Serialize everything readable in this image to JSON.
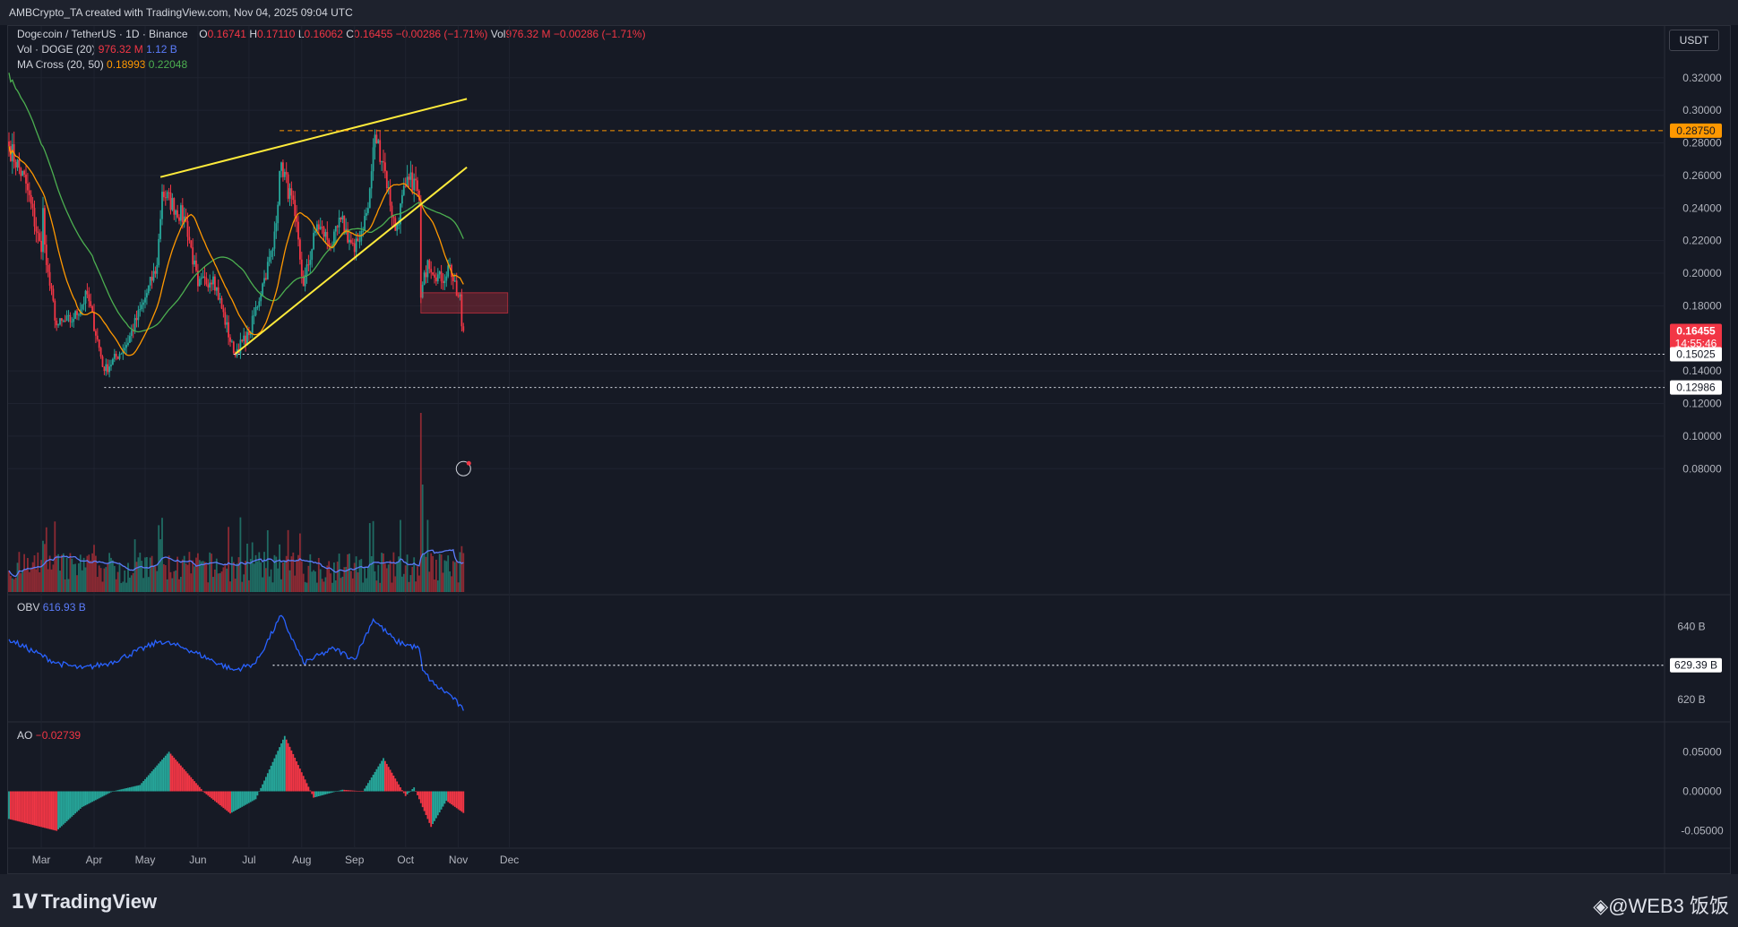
{
  "header": {
    "credit": "AMBCrypto_TA created with TradingView.com, Nov 04, 2025 09:04 UTC"
  },
  "legend": {
    "symbol": "Dogecoin / TetherUS · 1D · Binance",
    "o_label": "O",
    "o_val": "0.16741",
    "h_label": "H",
    "h_val": "0.17110",
    "l_label": "L",
    "l_val": "0.16062",
    "c_label": "C",
    "c_val": "0.16455",
    "chg": "−0.00286 (−1.71%)",
    "vol_label": "Vol",
    "vol_val": "976.32 M",
    "vol_chg": "−0.00286 (−1.71%)",
    "vol_ind": "Vol · DOGE (20)",
    "vol_ind_v1": "976.32 M",
    "vol_ind_v2": "1.12 B",
    "ma": "MA Cross (20, 50)",
    "ma_v1": "0.18993",
    "ma_v2": "0.22048",
    "obv": "OBV",
    "obv_val": "616.93 B",
    "ao": "AO",
    "ao_val": "−0.02739"
  },
  "currency_button": "USDT",
  "footer": {
    "brand": "TradingView",
    "watermark": "◈@WEB3 饭饭"
  },
  "colors": {
    "up": "#26a69a",
    "down": "#f23645",
    "ma_fast": "#ff9800",
    "ma_slow": "#4caf50",
    "obv": "#2962ff",
    "trend": "#ffeb3b",
    "bg": "#161a25"
  },
  "chart_data": [
    {
      "type": "candlestick",
      "title": "Dogecoin / TetherUS · 1D · Binance",
      "x_tick_labels": [
        "Mar",
        "Apr",
        "May",
        "Jun",
        "Jul",
        "Aug",
        "Sep",
        "Oct",
        "Nov",
        "Dec"
      ],
      "y_tick_labels": [
        "0.32000",
        "0.30000",
        "0.28000",
        "0.26000",
        "0.24000",
        "0.22000",
        "0.20000",
        "0.18000",
        "0.14000",
        "0.12000",
        "0.10000",
        "0.08000"
      ],
      "ylim": [
        0.07,
        0.345
      ],
      "price_markers": [
        {
          "label": "0.28750",
          "value": 0.2875,
          "style": "orange"
        },
        {
          "label": "0.16455",
          "sub": "14:55:46",
          "value": 0.16455,
          "style": "red"
        },
        {
          "label": "0.15025",
          "value": 0.15025,
          "style": "white"
        },
        {
          "label": "0.12986",
          "value": 0.12986,
          "style": "white"
        }
      ],
      "trendlines": [
        {
          "name": "upper-resistance",
          "from": [
            "2025-05-10",
            0.259
          ],
          "to": [
            "2025-11-06",
            0.307
          ]
        },
        {
          "name": "rising-support",
          "from": [
            "2025-06-23",
            0.1505
          ],
          "to": [
            "2025-11-06",
            0.265
          ]
        }
      ],
      "levels": [
        {
          "name": "dashed-0.2875",
          "value": 0.2875,
          "from": "2025-07-19"
        },
        {
          "name": "dotted-0.15025",
          "value": 0.15025,
          "from": "2025-06-22"
        },
        {
          "name": "dotted-0.12986",
          "value": 0.12986,
          "from": "2025-04-07"
        }
      ],
      "zone": {
        "from": "2025-10-10",
        "to": "2025-11-30",
        "low": 0.1755,
        "high": 0.188
      },
      "ohlc_anchors": [
        {
          "date": "2025-02-10",
          "close": 0.278
        },
        {
          "date": "2025-02-20",
          "close": 0.255
        },
        {
          "date": "2025-03-01",
          "close": 0.213
        },
        {
          "date": "2025-03-02",
          "close": 0.24
        },
        {
          "date": "2025-03-04",
          "close": 0.205
        },
        {
          "date": "2025-03-10",
          "close": 0.168
        },
        {
          "date": "2025-03-20",
          "close": 0.172
        },
        {
          "date": "2025-03-28",
          "close": 0.187
        },
        {
          "date": "2025-04-07",
          "close": 0.14
        },
        {
          "date": "2025-04-20",
          "close": 0.156
        },
        {
          "date": "2025-04-30",
          "close": 0.182
        },
        {
          "date": "2025-05-08",
          "close": 0.205
        },
        {
          "date": "2025-05-11",
          "close": 0.25
        },
        {
          "date": "2025-05-25",
          "close": 0.232
        },
        {
          "date": "2025-06-01",
          "close": 0.192
        },
        {
          "date": "2025-06-10",
          "close": 0.198
        },
        {
          "date": "2025-06-22",
          "close": 0.151
        },
        {
          "date": "2025-07-01",
          "close": 0.162
        },
        {
          "date": "2025-07-10",
          "close": 0.197
        },
        {
          "date": "2025-07-15",
          "close": 0.215
        },
        {
          "date": "2025-07-20",
          "close": 0.268
        },
        {
          "date": "2025-07-28",
          "close": 0.235
        },
        {
          "date": "2025-08-02",
          "close": 0.192
        },
        {
          "date": "2025-08-10",
          "close": 0.23
        },
        {
          "date": "2025-08-19",
          "close": 0.217
        },
        {
          "date": "2025-08-24",
          "close": 0.233
        },
        {
          "date": "2025-09-01",
          "close": 0.213
        },
        {
          "date": "2025-09-09",
          "close": 0.24
        },
        {
          "date": "2025-09-13",
          "close": 0.285
        },
        {
          "date": "2025-09-18",
          "close": 0.268
        },
        {
          "date": "2025-09-25",
          "close": 0.226
        },
        {
          "date": "2025-10-01",
          "close": 0.253
        },
        {
          "date": "2025-10-06",
          "close": 0.258
        },
        {
          "date": "2025-10-09",
          "close": 0.245
        },
        {
          "date": "2025-10-10",
          "close": 0.185
        },
        {
          "date": "2025-10-14",
          "close": 0.208
        },
        {
          "date": "2025-10-22",
          "close": 0.195
        },
        {
          "date": "2025-10-27",
          "close": 0.205
        },
        {
          "date": "2025-10-31",
          "close": 0.186
        },
        {
          "date": "2025-11-02",
          "close": 0.187
        },
        {
          "date": "2025-11-03",
          "close": 0.16741
        },
        {
          "date": "2025-11-04",
          "close": 0.16455
        }
      ],
      "ma_cross": {
        "fast_period": 20,
        "slow_period": 50,
        "fast_last": 0.18993,
        "slow_last": 0.22048
      },
      "volume_ma_last": "1.12 B"
    },
    {
      "type": "line",
      "title": "OBV",
      "y_tick_labels": [
        "640 B",
        "620 B"
      ],
      "marker": {
        "label": "629.39 B",
        "value": 629.39
      },
      "series": [
        {
          "name": "OBV",
          "last": 616.93,
          "anchors": [
            {
              "date": "2025-02-10",
              "v": 636.5
            },
            {
              "date": "2025-03-10",
              "v": 630
            },
            {
              "date": "2025-03-25",
              "v": 628.5
            },
            {
              "date": "2025-04-10",
              "v": 630
            },
            {
              "date": "2025-05-10",
              "v": 636
            },
            {
              "date": "2025-05-25",
              "v": 634
            },
            {
              "date": "2025-06-22",
              "v": 628
            },
            {
              "date": "2025-07-05",
              "v": 630
            },
            {
              "date": "2025-07-20",
              "v": 643
            },
            {
              "date": "2025-08-02",
              "v": 630
            },
            {
              "date": "2025-08-20",
              "v": 634
            },
            {
              "date": "2025-09-01",
              "v": 631
            },
            {
              "date": "2025-09-12",
              "v": 642
            },
            {
              "date": "2025-09-25",
              "v": 636
            },
            {
              "date": "2025-10-09",
              "v": 634
            },
            {
              "date": "2025-10-11",
              "v": 628
            },
            {
              "date": "2025-10-18",
              "v": 624
            },
            {
              "date": "2025-10-28",
              "v": 621
            },
            {
              "date": "2025-11-04",
              "v": 616.93
            }
          ]
        }
      ]
    },
    {
      "type": "bar",
      "title": "AO",
      "y_tick_labels": [
        "0.05000",
        "0.00000",
        "-0.05000"
      ],
      "last": -0.02739,
      "anchors": [
        {
          "date": "2025-02-10",
          "v": -0.035
        },
        {
          "date": "2025-03-10",
          "v": -0.05
        },
        {
          "date": "2025-03-25",
          "v": -0.02
        },
        {
          "date": "2025-04-12",
          "v": 0.0
        },
        {
          "date": "2025-04-28",
          "v": 0.008
        },
        {
          "date": "2025-05-15",
          "v": 0.05
        },
        {
          "date": "2025-06-05",
          "v": -0.002
        },
        {
          "date": "2025-06-20",
          "v": -0.028
        },
        {
          "date": "2025-07-05",
          "v": -0.01
        },
        {
          "date": "2025-07-22",
          "v": 0.07
        },
        {
          "date": "2025-08-08",
          "v": -0.008
        },
        {
          "date": "2025-08-25",
          "v": 0.002
        },
        {
          "date": "2025-09-06",
          "v": 0.0
        },
        {
          "date": "2025-09-18",
          "v": 0.042
        },
        {
          "date": "2025-10-01",
          "v": -0.006
        },
        {
          "date": "2025-10-06",
          "v": 0.005
        },
        {
          "date": "2025-10-16",
          "v": -0.045
        },
        {
          "date": "2025-10-25",
          "v": -0.012
        },
        {
          "date": "2025-11-04",
          "v": -0.02739
        }
      ]
    }
  ]
}
